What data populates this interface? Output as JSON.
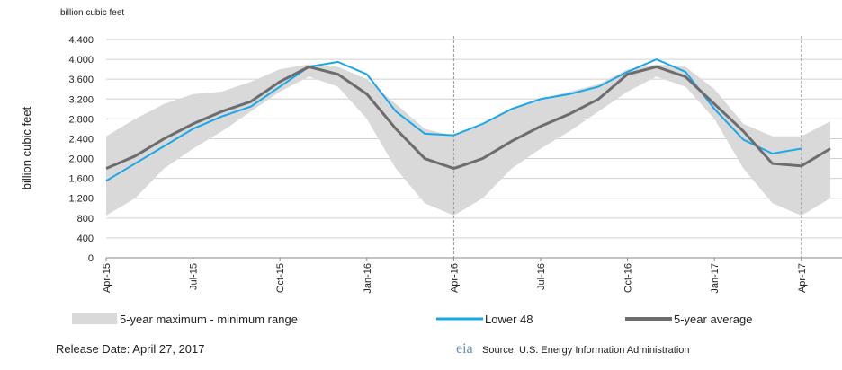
{
  "chart_data": {
    "type": "line",
    "unit_label": "billion  cubic feet",
    "y_label": "billion cubic feet",
    "categories": [
      "Apr-15",
      null,
      null,
      "Jul-15",
      null,
      null,
      "Oct-15",
      null,
      null,
      "Jan-16",
      null,
      null,
      "Apr-16",
      null,
      null,
      "Jul-16",
      null,
      null,
      "Oct-16",
      null,
      null,
      "Jan-17",
      null,
      null,
      "Apr-17",
      null
    ],
    "band": {
      "name": "5-year maximum - minimum range",
      "color": "#d9d9d9",
      "max": [
        2450,
        2800,
        3100,
        3300,
        3350,
        3550,
        3800,
        3900,
        3850,
        3600,
        3100,
        2600,
        2450,
        2700,
        3000,
        3200,
        3350,
        3500,
        3800,
        3900,
        3850,
        3400,
        2700,
        2450,
        2450,
        2750
      ],
      "min": [
        850,
        1200,
        1800,
        2200,
        2550,
        2950,
        3350,
        3650,
        3450,
        2800,
        1800,
        1100,
        850,
        1200,
        1800,
        2200,
        2550,
        2950,
        3350,
        3650,
        3450,
        2800,
        1800,
        1100,
        850,
        1200
      ]
    },
    "series": [
      {
        "name": "Lower 48",
        "color": "#1aa7e8",
        "values": [
          1550,
          1900,
          2250,
          2600,
          2850,
          3050,
          3450,
          3850,
          3950,
          3700,
          2950,
          2500,
          2470,
          2700,
          3000,
          3200,
          3300,
          3450,
          3750,
          4000,
          3750,
          3000,
          2380,
          2100,
          2200,
          null
        ]
      },
      {
        "name": "5-year average",
        "color": "#6d6d6d",
        "values": [
          1800,
          2050,
          2400,
          2700,
          2950,
          3150,
          3550,
          3850,
          3700,
          3300,
          2600,
          2000,
          1800,
          2000,
          2350,
          2650,
          2900,
          3200,
          3700,
          3850,
          3650,
          3100,
          2550,
          1900,
          1850,
          2200
        ]
      }
    ],
    "ylim": [
      0,
      4400
    ],
    "yticks": [
      0,
      400,
      800,
      {
        "value": 1200,
        "label": "1,200"
      },
      {
        "value": 1600,
        "label": "1,600"
      },
      {
        "value": 2000,
        "label": "2,000"
      },
      {
        "value": 2400,
        "label": "2,400"
      },
      {
        "value": 2800,
        "label": "2,800"
      },
      {
        "value": 3200,
        "label": "3,200"
      },
      {
        "value": 3600,
        "label": "3,600"
      },
      {
        "value": 4000,
        "label": "4,000"
      },
      {
        "value": 4400,
        "label": "4,400"
      }
    ],
    "grid": true,
    "release": "Release Date:  April 27, 2017",
    "logo": "eia",
    "source": "Source:  U.S. Energy Information Administration"
  }
}
